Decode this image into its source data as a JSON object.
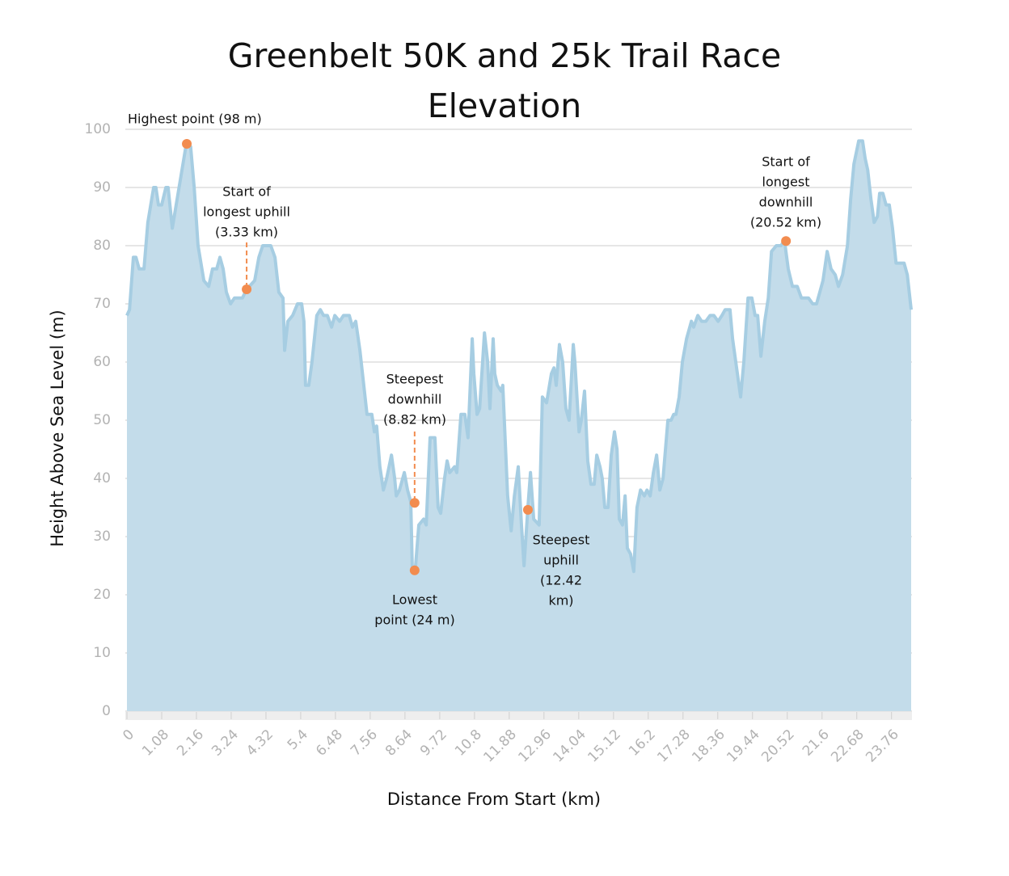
{
  "chart_data": {
    "type": "area",
    "title": "Greenbelt 50K and 25k Trail Race Elevation",
    "x_label": "Distance From Start (km)",
    "y_label": "Height Above Sea Level (m)",
    "color": "#c3dcea",
    "line_color": "#a6cde2",
    "marker_color": "#f28c4f",
    "grid": true,
    "xlim": [
      0,
      24.37
    ],
    "ylim": [
      0,
      100
    ],
    "xticks": [
      0,
      1.08,
      2.16,
      3.24,
      4.32,
      5.4,
      6.48,
      7.56,
      8.64,
      9.72,
      10.8,
      11.88,
      12.96,
      14.04,
      15.12,
      16.2,
      17.28,
      18.36,
      19.44,
      20.52,
      21.6,
      22.68,
      23.76
    ],
    "yticks": [
      0,
      10,
      20,
      30,
      40,
      50,
      60,
      70,
      80,
      90,
      100
    ],
    "x": [
      0,
      0.08,
      0.2,
      0.28,
      0.38,
      0.53,
      0.65,
      0.83,
      0.9,
      0.98,
      1.08,
      1.21,
      1.28,
      1.41,
      1.53,
      1.71,
      1.86,
      1.98,
      2.09,
      2.21,
      2.39,
      2.54,
      2.66,
      2.79,
      2.89,
      2.99,
      3.09,
      3.22,
      3.34,
      3.59,
      3.72,
      3.97,
      4.1,
      4.22,
      4.47,
      4.6,
      4.72,
      4.85,
      4.9,
      5.0,
      5.15,
      5.3,
      5.43,
      5.5,
      5.55,
      5.65,
      5.75,
      5.9,
      6.01,
      6.11,
      6.23,
      6.36,
      6.46,
      6.61,
      6.73,
      6.91,
      7.01,
      7.11,
      7.24,
      7.36,
      7.46,
      7.61,
      7.69,
      7.76,
      7.86,
      7.97,
      8.07,
      8.22,
      8.32,
      8.37,
      8.47,
      8.62,
      8.72,
      8.82,
      8.87,
      8.97,
      9.07,
      9.22,
      9.3,
      9.42,
      9.57,
      9.67,
      9.75,
      9.87,
      9.95,
      10.03,
      10.18,
      10.25,
      10.38,
      10.5,
      10.6,
      10.73,
      10.78,
      10.88,
      10.96,
      11.11,
      11.21,
      11.28,
      11.38,
      11.43,
      11.51,
      11.63,
      11.68,
      11.83,
      11.94,
      12.04,
      12.16,
      12.26,
      12.34,
      12.46,
      12.54,
      12.64,
      12.81,
      12.91,
      13.04,
      13.19,
      13.27,
      13.34,
      13.44,
      13.54,
      13.64,
      13.74,
      13.87,
      13.92,
      14.05,
      14.12,
      14.22,
      14.32,
      14.42,
      14.52,
      14.6,
      14.7,
      14.77,
      14.85,
      14.95,
      15.05,
      15.15,
      15.23,
      15.3,
      15.4,
      15.48,
      15.55,
      15.65,
      15.75,
      15.85,
      15.96,
      16.08,
      16.16,
      16.26,
      16.36,
      16.46,
      16.56,
      16.66,
      16.81,
      16.91,
      16.99,
      17.06,
      17.16,
      17.26,
      17.39,
      17.54,
      17.61,
      17.74,
      17.86,
      17.99,
      18.12,
      18.24,
      18.37,
      18.49,
      18.59,
      18.74,
      18.82,
      18.92,
      19.07,
      19.17,
      19.3,
      19.42,
      19.52,
      19.6,
      19.7,
      19.82,
      19.93,
      20.03,
      20.18,
      20.33,
      20.43,
      20.55,
      20.68,
      20.83,
      20.96,
      21.18,
      21.31,
      21.43,
      21.53,
      21.63,
      21.76,
      21.88,
      22.01,
      22.11,
      22.24,
      22.39,
      22.49,
      22.59,
      22.74,
      22.86,
      22.94,
      23.02,
      23.12,
      23.22,
      23.32,
      23.39,
      23.49,
      23.59,
      23.69,
      23.79,
      23.9,
      24.02,
      24.15,
      24.25,
      24.37
    ],
    "values": [
      68,
      69,
      78,
      78,
      76,
      76,
      84,
      90,
      90,
      87,
      87,
      90,
      90,
      83,
      87,
      93,
      98,
      97,
      90,
      80,
      74,
      73,
      76,
      76,
      78,
      76,
      72,
      70,
      71,
      71,
      72.5,
      74,
      78,
      80,
      80,
      78,
      72,
      71,
      62,
      67,
      68,
      70,
      70,
      67,
      56,
      56,
      60,
      68,
      69,
      68,
      68,
      66,
      68,
      67,
      68,
      68,
      66,
      67,
      62,
      56,
      51,
      51,
      48,
      49,
      42,
      38,
      40,
      44,
      40,
      37,
      38,
      41,
      38,
      36,
      24,
      25,
      32,
      33,
      32,
      47,
      47,
      35,
      34,
      40,
      43,
      41,
      42,
      41,
      51,
      51,
      47,
      64,
      58,
      51,
      52,
      65,
      60,
      52,
      64,
      58,
      56,
      55,
      56,
      37,
      31,
      37,
      42,
      32,
      25,
      35,
      41,
      33,
      32,
      54,
      53,
      58,
      59,
      56,
      63,
      60,
      52,
      50,
      63,
      60,
      48,
      50,
      55,
      43,
      39,
      39,
      44,
      42,
      40,
      35,
      35,
      44,
      48,
      45,
      33,
      32,
      37,
      28,
      27,
      24,
      35,
      38,
      37,
      38,
      37,
      41,
      44,
      38,
      40,
      50,
      50,
      51,
      51,
      54,
      60,
      64,
      67,
      66,
      68,
      67,
      67,
      68,
      68,
      67,
      68,
      69,
      69,
      64,
      60,
      54,
      60,
      71,
      71,
      68,
      68,
      61,
      67,
      71,
      79,
      80,
      80,
      81,
      76,
      73,
      73,
      71,
      71,
      70,
      70,
      72,
      74,
      79,
      76,
      75,
      73,
      75,
      80,
      88,
      94,
      98,
      98,
      95,
      93,
      88,
      84,
      85,
      89,
      89,
      87,
      87,
      83,
      77,
      77,
      77,
      75,
      69
    ],
    "annotations": [
      {
        "lines": [
          "Highest point (98 m)"
        ],
        "x": 1.86,
        "y": 97.5
      },
      {
        "lines": [
          "Start of",
          "longest uphill",
          "(3.33 km)"
        ],
        "x": 3.72,
        "y": 72.5
      },
      {
        "lines": [
          "Steepest",
          "downhill",
          "(8.82 km)"
        ],
        "x": 8.94,
        "y": 35.8
      },
      {
        "lines": [
          "Lowest",
          "point (24 m)"
        ],
        "x": 8.94,
        "y": 24.2
      },
      {
        "lines": [
          "Steepest",
          "uphill",
          "(12.42",
          "km)"
        ],
        "x": 12.46,
        "y": 34.6
      },
      {
        "lines": [
          "Start of",
          "longest",
          "downhill",
          "(20.52 km)"
        ],
        "x": 20.48,
        "y": 80.8
      }
    ]
  }
}
